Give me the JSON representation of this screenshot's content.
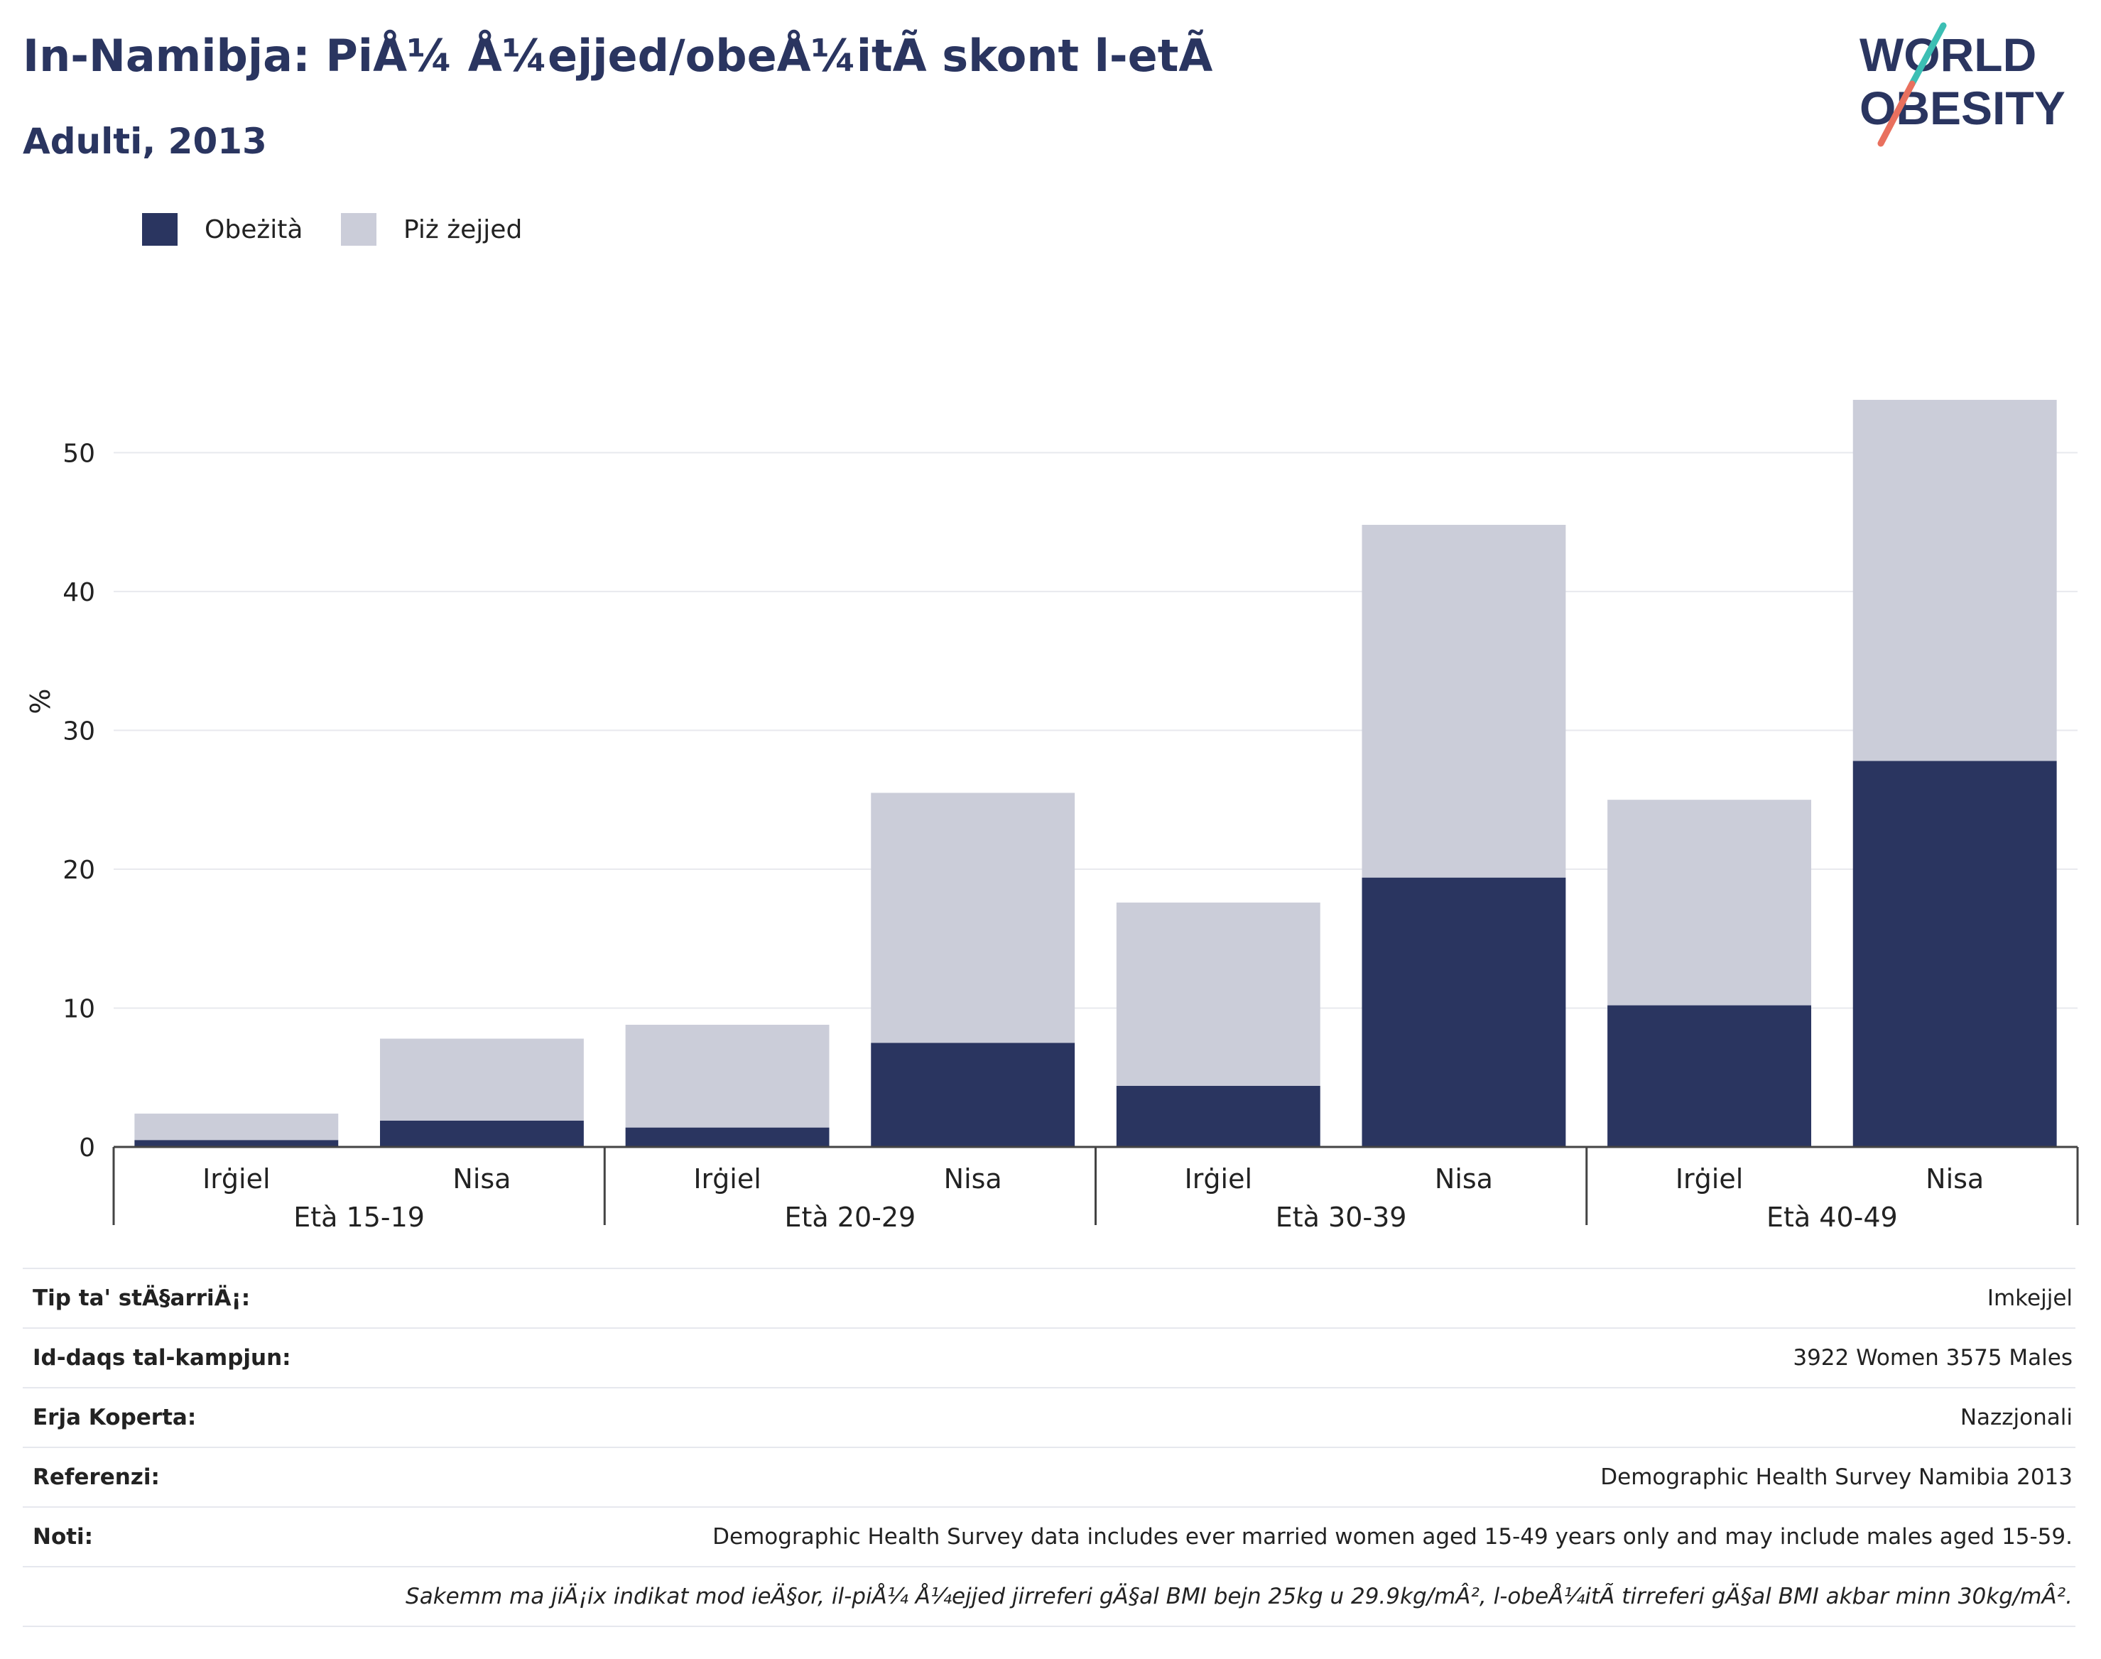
{
  "title": "In-Namibja: PiÅ¼ Å¼ejjed/obeÅ¼itÃ  skont l-etÃ",
  "subtitle": "Adulti, 2013",
  "logo": {
    "line1": "WORLD",
    "line2": "OBESITY"
  },
  "colors": {
    "obese": "#2a3560",
    "overweight": "#cbcdd9",
    "title": "#2a3560",
    "grid": "#e8e9ee",
    "axis": "#444444",
    "logo_teal": "#3cbfb4",
    "logo_coral": "#e9705e"
  },
  "legend": [
    {
      "label": "Obeżità",
      "color": "#2a3560"
    },
    {
      "label": "Piż żejjed",
      "color": "#cbcdd9"
    }
  ],
  "chart_data": {
    "type": "bar",
    "stacked": true,
    "ylabel": "%",
    "ylim": [
      0,
      56
    ],
    "yticks": [
      0,
      10,
      20,
      30,
      40,
      50
    ],
    "grid": true,
    "legend_position": "top-left",
    "groups": [
      "Età 15-19",
      "Età 20-29",
      "Età 30-39",
      "Età 40-49"
    ],
    "categories": [
      "Irġiel",
      "Nisa",
      "Irġiel",
      "Nisa",
      "Irġiel",
      "Nisa",
      "Irġiel",
      "Nisa"
    ],
    "series": [
      {
        "name": "Obeżità",
        "values": [
          0.5,
          1.9,
          1.4,
          7.5,
          4.4,
          19.4,
          10.2,
          27.8
        ]
      },
      {
        "name": "Piż żejjed",
        "values": [
          1.9,
          5.9,
          7.4,
          18.0,
          13.2,
          25.4,
          14.8,
          26.0
        ]
      }
    ]
  },
  "info": [
    {
      "label": "Tip ta' stÄ§arriÄ¡:",
      "value": "Imkejjel"
    },
    {
      "label": "Id-daqs tal-kampjun:",
      "value": "3922 Women 3575 Males"
    },
    {
      "label": "Erja Koperta:",
      "value": "Nazzjonali"
    },
    {
      "label": "Referenzi:",
      "value": "Demographic Health Survey Namibia 2013"
    },
    {
      "label": "Noti:",
      "value": "Demographic Health Survey data includes ever married women aged 15-49 years only and may include males aged 15-59."
    }
  ],
  "note": "Sakemm ma jiÄ¡ix indikat mod ieÄ§or, il-piÅ¼ Å¼ejjed jirreferi gÄ§al BMI bejn 25kg u 29.9kg/mÂ², l-obeÅ¼itÃ  tirreferi gÄ§al BMI akbar minn 30kg/mÂ²."
}
